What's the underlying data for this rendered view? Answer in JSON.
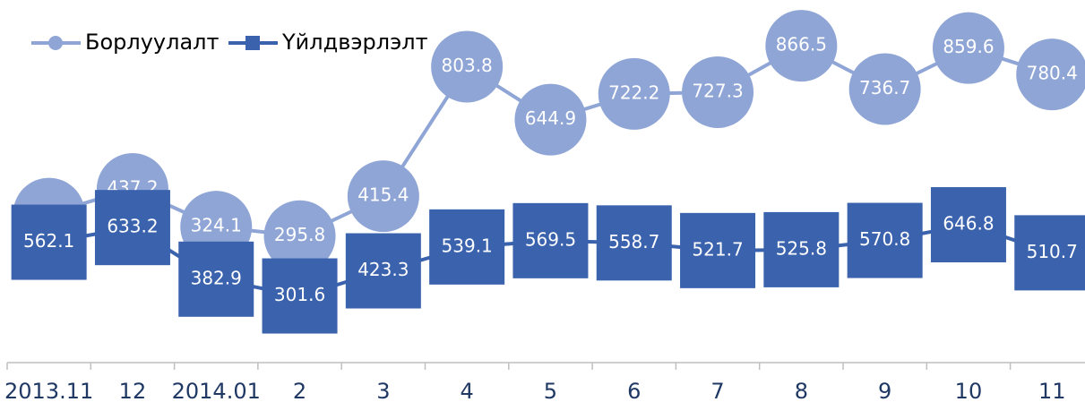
{
  "chart_data": {
    "type": "line",
    "categories": [
      "2013.11",
      "12",
      "2014.01",
      "2",
      "3",
      "4",
      "5",
      "6",
      "7",
      "8",
      "9",
      "10",
      "11"
    ],
    "series": [
      {
        "name": "Борлуулалт",
        "color": "#8fa5d6",
        "marker": "circle",
        "values": [
          363.3,
          437.2,
          324.1,
          295.8,
          415.4,
          803.8,
          644.9,
          722.2,
          727.3,
          866.5,
          736.7,
          859.6,
          780.4
        ]
      },
      {
        "name": "Үйлдвэрлэлт",
        "color": "#3a62ad",
        "marker": "square",
        "axis": "y2",
        "values": [
          562.1,
          633.2,
          382.9,
          301.6,
          423.3,
          539.1,
          569.5,
          558.7,
          521.7,
          525.8,
          570.8,
          646.8,
          510.7
        ]
      }
    ],
    "ylim": [
      -70,
      950
    ],
    "y2lim": [
      0,
      1650
    ],
    "legend": "top-left"
  }
}
